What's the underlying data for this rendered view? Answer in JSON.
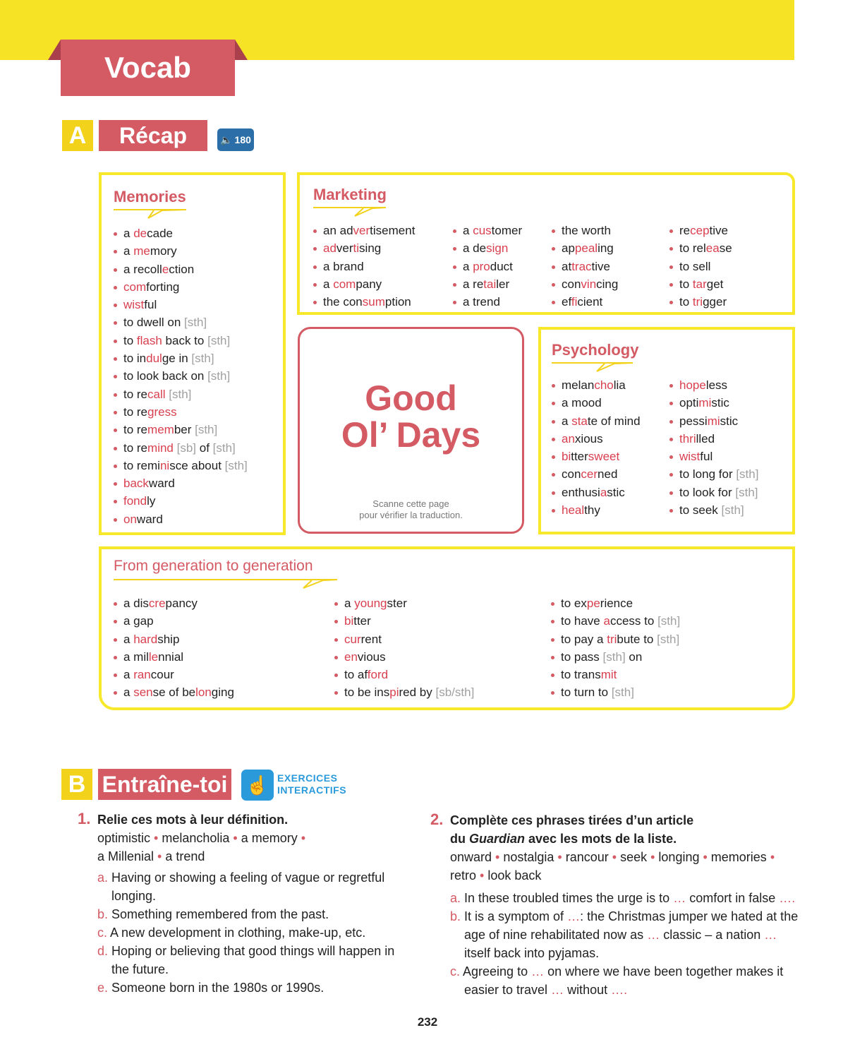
{
  "header": {
    "title": "Vocab"
  },
  "section_a": {
    "letter": "A",
    "title": "Récap",
    "audio_track": "180",
    "memories": {
      "title": "Memories",
      "items": [
        [
          "a ",
          "de",
          "cade"
        ],
        [
          "a ",
          "me",
          "mory"
        ],
        [
          "a recoll",
          "e",
          "ction"
        ],
        [
          "",
          "com",
          "forting"
        ],
        [
          "",
          "wist",
          "ful"
        ],
        [
          "to dwell on [sth]"
        ],
        [
          "to ",
          "flash",
          " back to [sth]"
        ],
        [
          "to in",
          "dul",
          "ge in [sth]"
        ],
        [
          "to look back on [sth]"
        ],
        [
          "to re",
          "call",
          " [sth]"
        ],
        [
          "to re",
          "gress",
          ""
        ],
        [
          "to re",
          "mem",
          "ber [sth]"
        ],
        [
          "to re",
          "mind",
          " [sb] of [sth]"
        ],
        [
          "to remi",
          "ni",
          "sce about [sth]"
        ],
        [
          "",
          "back",
          "ward"
        ],
        [
          "",
          "fond",
          "ly"
        ],
        [
          "",
          "on",
          "ward"
        ]
      ]
    },
    "marketing": {
      "title": "Marketing",
      "columns": [
        [
          [
            "an ad",
            "ver",
            "tisement"
          ],
          [
            "",
            "ad",
            "ver",
            "ti",
            "sing"
          ],
          [
            "a brand"
          ],
          [
            "a ",
            "com",
            "pany"
          ],
          [
            "the con",
            "sum",
            "ption"
          ]
        ],
        [
          [
            "a ",
            "cus",
            "tomer"
          ],
          [
            "a de",
            "sign",
            ""
          ],
          [
            "a ",
            "pro",
            "duct"
          ],
          [
            "a re",
            "tai",
            "ler"
          ],
          [
            "a trend"
          ]
        ],
        [
          [
            "the worth"
          ],
          [
            "ap",
            "peal",
            "ing"
          ],
          [
            "at",
            "trac",
            "tive"
          ],
          [
            "con",
            "vin",
            "cing"
          ],
          [
            "ef",
            "fi",
            "cient"
          ]
        ],
        [
          [
            "re",
            "cep",
            "tive"
          ],
          [
            "to rel",
            "ea",
            "se"
          ],
          [
            "to sell"
          ],
          [
            "to ",
            "tar",
            "get"
          ],
          [
            "to ",
            "tri",
            "gger"
          ]
        ]
      ]
    },
    "center_card": {
      "title_line1": "Good",
      "title_line2": "Ol’ Days",
      "note_line1": "Scanne cette page",
      "note_line2": "pour vérifier la traduction."
    },
    "psychology": {
      "title": "Psychology",
      "columns": [
        [
          [
            "melan",
            "cho",
            "lia"
          ],
          [
            "a mood"
          ],
          [
            "a ",
            "sta",
            "te of mind"
          ],
          [
            "",
            "an",
            "xious"
          ],
          [
            "",
            "bi",
            "tter",
            "sweet",
            ""
          ],
          [
            "con",
            "cer",
            "ned"
          ],
          [
            "enthusi",
            "a",
            "stic"
          ],
          [
            "",
            "heal",
            "thy"
          ]
        ],
        [
          [
            "",
            "hope",
            "less"
          ],
          [
            "opti",
            "mi",
            "stic"
          ],
          [
            "pessi",
            "mi",
            "stic"
          ],
          [
            "",
            "thri",
            "lled"
          ],
          [
            "",
            "wist",
            "ful"
          ],
          [
            "to long for [sth]"
          ],
          [
            "to look for [sth]"
          ],
          [
            "to seek [sth]"
          ]
        ]
      ]
    },
    "generation": {
      "title": "From generation to generation",
      "columns": [
        [
          [
            "a dis",
            "cre",
            "pancy"
          ],
          [
            "a gap"
          ],
          [
            "a ",
            "hard",
            "ship"
          ],
          [
            "a mil",
            "le",
            "nnial"
          ],
          [
            "a ",
            "ran",
            "cour"
          ],
          [
            "a ",
            "sen",
            "se of be",
            "lon",
            "ging"
          ]
        ],
        [
          [
            "a ",
            "young",
            "ster"
          ],
          [
            "",
            "bi",
            "tter"
          ],
          [
            "",
            "cur",
            "rent"
          ],
          [
            "",
            "en",
            "vious"
          ],
          [
            "to af",
            "ford",
            ""
          ],
          [
            "to be ins",
            "pi",
            "red by [sb/sth]"
          ]
        ],
        [
          [
            "to ex",
            "pe",
            "rience"
          ],
          [
            "to have ",
            "a",
            "ccess to [sth]"
          ],
          [
            "to pay a ",
            "tri",
            "bute to [sth]"
          ],
          [
            "to pass [sth] on"
          ],
          [
            "to trans",
            "mit",
            ""
          ],
          [
            "to turn to [sth]"
          ]
        ]
      ]
    }
  },
  "section_b": {
    "letter": "B",
    "title": "Entraîne-toi",
    "interactive_label_1": "EXERCICES",
    "interactive_label_2": "INTERACTIFS",
    "ex1": {
      "number": "1.",
      "instruction": "Relie ces mots à leur définition.",
      "words_line1": [
        "optimistic",
        "melancholia",
        "a memory"
      ],
      "words_line2": [
        "a Millenial",
        "a trend"
      ],
      "items": [
        {
          "letter": "a.",
          "text": "Having or showing a feeling of vague or regretful longing."
        },
        {
          "letter": "b.",
          "text": "Something remembered from the past."
        },
        {
          "letter": "c.",
          "text": "A new development in clothing, make-up, etc."
        },
        {
          "letter": "d.",
          "text": "Hoping or believing that good things will happen in the future."
        },
        {
          "letter": "e.",
          "text": "Someone born in the 1980s or 1990s."
        }
      ]
    },
    "ex2": {
      "number": "2.",
      "instruction_part1": "Complète ces phrases tirées d’un article",
      "instruction_part2": "du ",
      "instruction_italic": "Guardian",
      "instruction_part3": " avec les mots de la liste.",
      "words_line1": [
        "onward",
        "nostalgia",
        "rancour",
        "seek",
        "longing",
        "memories"
      ],
      "words_line2": [
        "retro",
        "look back"
      ],
      "items": [
        {
          "letter": "a.",
          "text": "In these troubled times the urge is to … comfort in false …."
        },
        {
          "letter": "b.",
          "text": "It is a symptom of …: the Christmas jumper we hated at the age of nine rehabilitated now as … classic – a nation … itself back into pyjamas."
        },
        {
          "letter": "c.",
          "text": "Agreeing to … on where we have been together makes it easier to travel … without …."
        }
      ]
    }
  },
  "page_number": "232",
  "colors": {
    "accent_red": "#D45A64",
    "yellow": "#F7E325",
    "audio_blue": "#2C6FA8",
    "interactive_blue": "#2A9ADB"
  }
}
